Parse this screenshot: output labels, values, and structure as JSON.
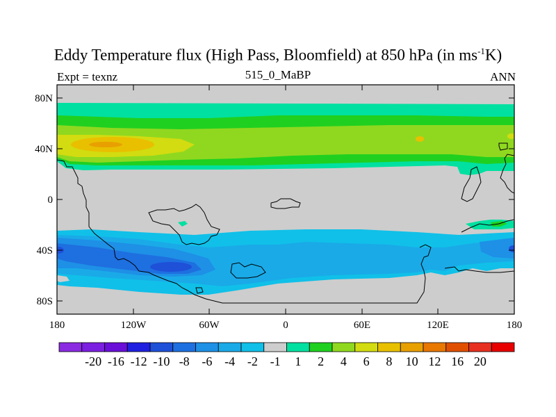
{
  "title": {
    "main": "Eddy Temperature flux (High Pass, Bloomfield) at 850 hPa (in ms",
    "sup": "-1",
    "suffix": "K)"
  },
  "subtitle": {
    "left": "Expt = texnz",
    "center": "515_0_MaBP",
    "right": "ANN"
  },
  "map": {
    "lat_ticks": [
      "80N",
      "40N",
      "0",
      "40S",
      "80S"
    ],
    "lon_ticks": [
      "180",
      "120W",
      "60W",
      "0",
      "60E",
      "120E",
      "180"
    ],
    "fields": [
      {
        "name": "nh-weak-positive-band",
        "value_range": "1 to 2"
      },
      {
        "name": "nh-moderate-positive-band",
        "value_range": "4 to 6"
      },
      {
        "name": "nh-maximum-core",
        "value_range": "10 to 12"
      },
      {
        "name": "sh-negative-band",
        "value_range": "-2 to -8"
      },
      {
        "name": "sh-minimum-core",
        "value_range": "-8 to -10"
      }
    ]
  },
  "colorbar": {
    "colors": [
      "#8A2BE2",
      "#7B1FE0",
      "#6A0FD8",
      "#2020E0",
      "#1E50D8",
      "#1E6FE0",
      "#1E90E6",
      "#1AAAE8",
      "#10C0E8",
      "#CDCDCD",
      "#00E0A0",
      "#20D020",
      "#90D820",
      "#D2DC10",
      "#E8C000",
      "#E8A000",
      "#E87800",
      "#E05000",
      "#E83020",
      "#E80000"
    ],
    "labels": [
      "-20",
      "-16",
      "-12",
      "-10",
      "-8",
      "-6",
      "-4",
      "-2",
      "-1",
      "1",
      "2",
      "4",
      "6",
      "8",
      "10",
      "12",
      "16",
      "20"
    ]
  }
}
